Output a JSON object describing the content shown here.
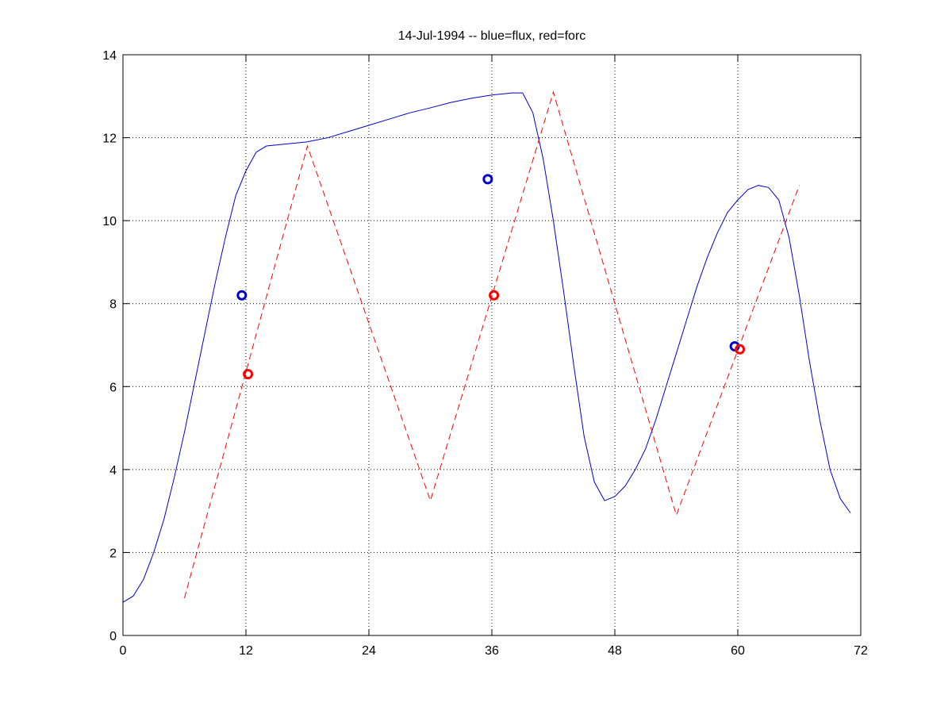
{
  "chart_data": {
    "type": "line",
    "title": "14-Jul-1994 -- blue=flux, red=forc",
    "xlim": [
      0,
      72
    ],
    "xticks": [
      0,
      12,
      24,
      36,
      48,
      60,
      72
    ],
    "ylim": [
      0,
      14
    ],
    "yticks": [
      0,
      2,
      4,
      6,
      8,
      10,
      12,
      14
    ],
    "grid": true,
    "series": [
      {
        "color": "#0000cc",
        "linestyle": "solid",
        "marker": "none",
        "x": [
          0,
          1,
          2,
          3,
          4,
          5,
          6,
          7,
          8,
          9,
          10,
          11,
          12,
          13,
          14,
          16,
          18,
          20,
          22,
          24,
          26,
          28,
          30,
          32,
          34,
          36,
          38,
          39,
          40,
          41,
          42,
          43,
          44,
          45,
          46,
          47,
          48,
          49,
          50,
          51,
          52,
          53,
          54,
          55,
          56,
          57,
          58,
          59,
          60,
          61,
          62,
          63,
          64,
          65,
          66,
          67,
          68,
          69,
          70,
          71
        ],
        "values": [
          0.8,
          0.95,
          1.35,
          2.0,
          2.8,
          3.8,
          4.9,
          6.1,
          7.3,
          8.5,
          9.6,
          10.6,
          11.2,
          11.65,
          11.8,
          11.85,
          11.9,
          12.0,
          12.15,
          12.3,
          12.45,
          12.6,
          12.72,
          12.85,
          12.95,
          13.03,
          13.08,
          13.08,
          12.6,
          11.5,
          10.0,
          8.3,
          6.5,
          4.8,
          3.7,
          3.25,
          3.35,
          3.6,
          4.0,
          4.5,
          5.2,
          6.0,
          6.8,
          7.6,
          8.4,
          9.1,
          9.7,
          10.2,
          10.5,
          10.75,
          10.85,
          10.8,
          10.5,
          9.6,
          8.2,
          6.6,
          5.2,
          4.0,
          3.3,
          2.95
        ]
      },
      {
        "color": "#ff0000",
        "linestyle": "dashed",
        "marker": "none",
        "x": [
          6,
          18,
          30,
          42,
          54,
          66
        ],
        "values": [
          0.9,
          11.8,
          3.25,
          13.1,
          2.9,
          10.85
        ]
      },
      {
        "color": "#0000cc",
        "linestyle": "none",
        "marker": "circle",
        "x": [
          11.6,
          35.6,
          59.7
        ],
        "values": [
          8.2,
          11.0,
          6.97
        ]
      },
      {
        "color": "#ff0000",
        "linestyle": "none",
        "marker": "circle",
        "x": [
          12.2,
          36.2,
          60.2
        ],
        "values": [
          6.3,
          8.2,
          6.9
        ]
      }
    ]
  }
}
